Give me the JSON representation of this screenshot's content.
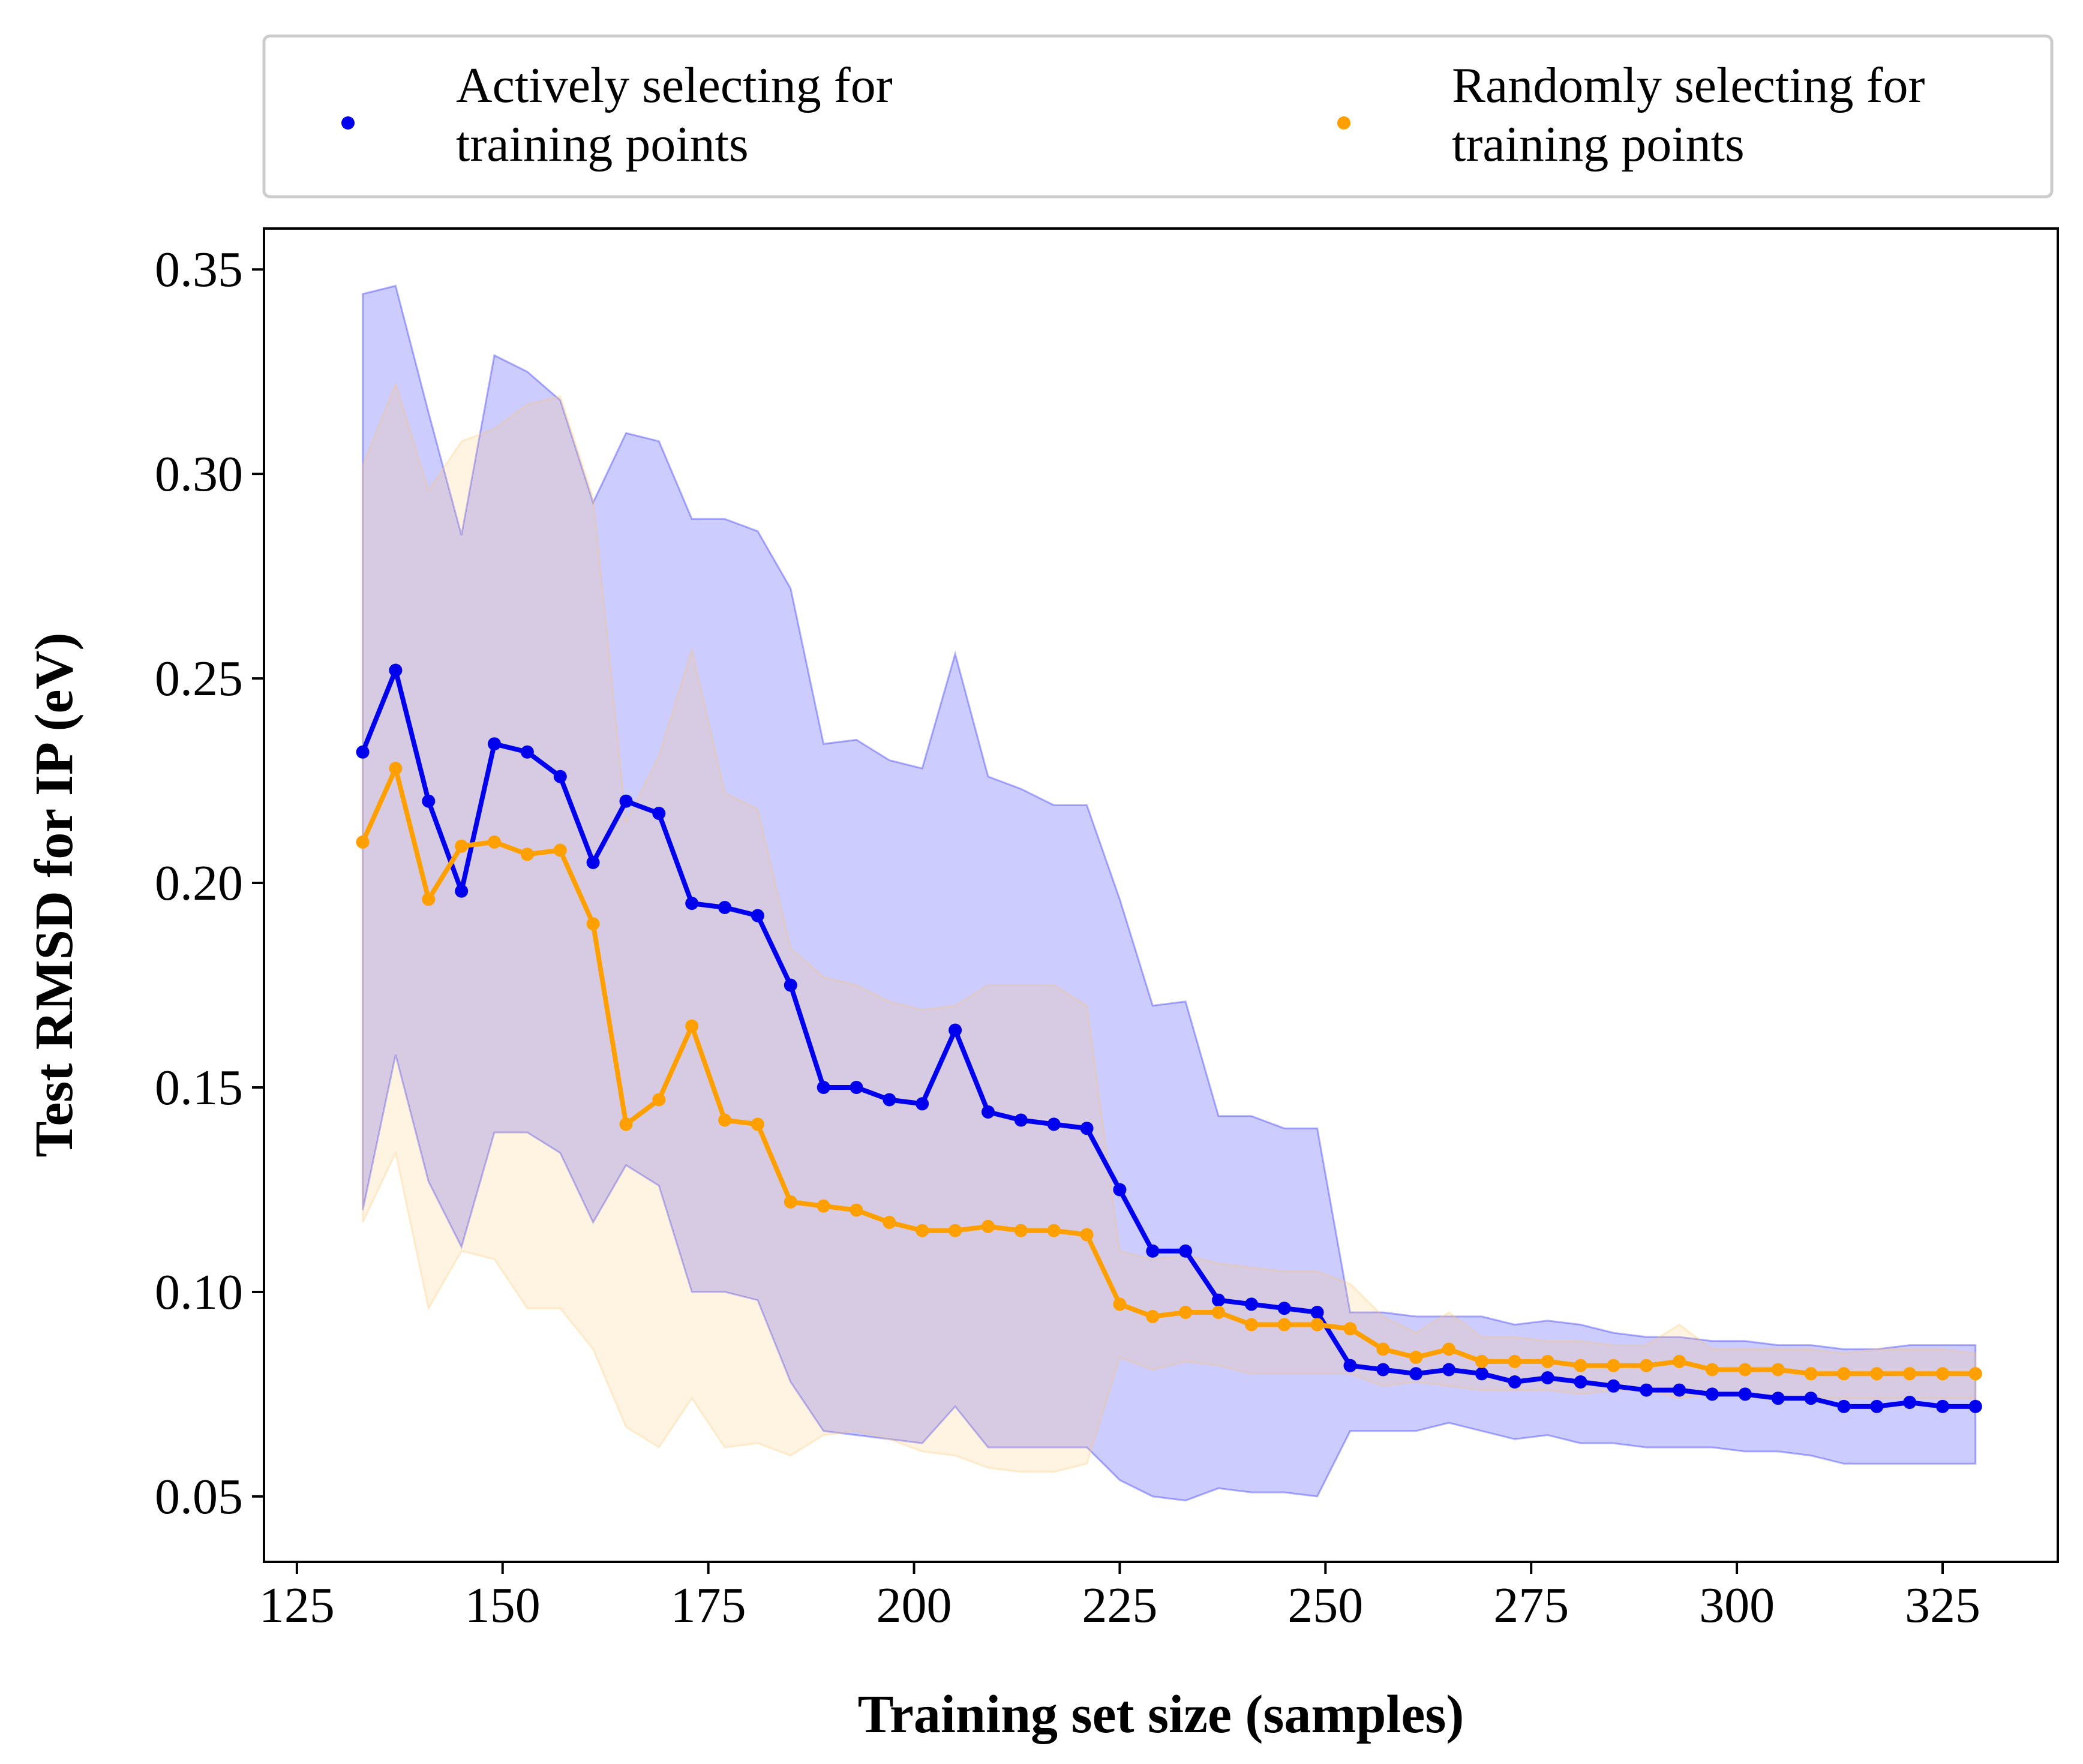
{
  "chart_data": {
    "type": "line",
    "xlabel": "Training set size (samples)",
    "ylabel": "Test RMSD for IP (eV)",
    "xlim": [
      121,
      339
    ],
    "ylim": [
      0.034,
      0.36
    ],
    "xticks": [
      125,
      150,
      175,
      200,
      225,
      250,
      275,
      300,
      325
    ],
    "xtick_labels": [
      "125",
      "150",
      "175",
      "200",
      "225",
      "250",
      "275",
      "300",
      "325"
    ],
    "yticks": [
      0.05,
      0.1,
      0.15,
      0.2,
      0.25,
      0.3,
      0.35
    ],
    "ytick_labels": [
      "0.05",
      "0.10",
      "0.15",
      "0.20",
      "0.25",
      "0.30",
      "0.35"
    ],
    "grid": false,
    "legend_position": "top",
    "x": [
      133,
      137,
      141,
      145,
      149,
      153,
      157,
      161,
      165,
      169,
      173,
      177,
      181,
      185,
      189,
      193,
      197,
      201,
      205,
      209,
      213,
      217,
      221,
      225,
      229,
      233,
      237,
      241,
      245,
      249,
      253,
      257,
      261,
      265,
      269,
      273,
      277,
      281,
      285,
      289,
      293,
      297,
      301,
      305,
      309,
      313,
      317,
      321,
      325,
      329
    ],
    "series": [
      {
        "name": "Actively selecting for\ntraining points",
        "legend_lines": [
          "Actively selecting for",
          "training points"
        ],
        "color": "#0000ee",
        "band_color": "#0000ff",
        "values": [
          0.232,
          0.252,
          0.22,
          0.198,
          0.234,
          0.232,
          0.226,
          0.205,
          0.22,
          0.217,
          0.195,
          0.194,
          0.192,
          0.175,
          0.15,
          0.15,
          0.147,
          0.146,
          0.164,
          0.144,
          0.142,
          0.141,
          0.14,
          0.125,
          0.11,
          0.11,
          0.098,
          0.097,
          0.096,
          0.095,
          0.082,
          0.081,
          0.08,
          0.081,
          0.08,
          0.078,
          0.079,
          0.078,
          0.077,
          0.076,
          0.076,
          0.075,
          0.075,
          0.074,
          0.074,
          0.072,
          0.072,
          0.073,
          0.072,
          0.072
        ],
        "upper": [
          0.344,
          0.346,
          0.315,
          0.285,
          0.329,
          0.325,
          0.318,
          0.293,
          0.31,
          0.308,
          0.289,
          0.289,
          0.286,
          0.272,
          0.234,
          0.235,
          0.23,
          0.228,
          0.256,
          0.226,
          0.223,
          0.219,
          0.219,
          0.196,
          0.17,
          0.171,
          0.143,
          0.143,
          0.14,
          0.14,
          0.095,
          0.095,
          0.094,
          0.094,
          0.094,
          0.092,
          0.093,
          0.092,
          0.09,
          0.089,
          0.089,
          0.088,
          0.088,
          0.087,
          0.087,
          0.086,
          0.086,
          0.087,
          0.087,
          0.087
        ],
        "lower": [
          0.12,
          0.158,
          0.127,
          0.111,
          0.139,
          0.139,
          0.134,
          0.117,
          0.131,
          0.126,
          0.1,
          0.1,
          0.098,
          0.078,
          0.066,
          0.065,
          0.064,
          0.063,
          0.072,
          0.062,
          0.062,
          0.062,
          0.062,
          0.054,
          0.05,
          0.049,
          0.052,
          0.051,
          0.051,
          0.05,
          0.066,
          0.066,
          0.066,
          0.068,
          0.066,
          0.064,
          0.065,
          0.063,
          0.063,
          0.062,
          0.062,
          0.062,
          0.061,
          0.061,
          0.06,
          0.058,
          0.058,
          0.058,
          0.058,
          0.058
        ]
      },
      {
        "name": "Randomly selecting for\ntraining points",
        "legend_lines": [
          "Randomly selecting for",
          "training points"
        ],
        "color": "#ffa000",
        "band_color": "#ffc870",
        "values": [
          0.21,
          0.228,
          0.196,
          0.209,
          0.21,
          0.207,
          0.208,
          0.19,
          0.141,
          0.147,
          0.165,
          0.142,
          0.141,
          0.122,
          0.121,
          0.12,
          0.117,
          0.115,
          0.115,
          0.116,
          0.115,
          0.115,
          0.114,
          0.097,
          0.094,
          0.095,
          0.095,
          0.092,
          0.092,
          0.092,
          0.091,
          0.086,
          0.084,
          0.086,
          0.083,
          0.083,
          0.083,
          0.082,
          0.082,
          0.082,
          0.083,
          0.081,
          0.081,
          0.081,
          0.08,
          0.08,
          0.08,
          0.08,
          0.08,
          0.08
        ],
        "upper": [
          0.302,
          0.322,
          0.296,
          0.308,
          0.311,
          0.317,
          0.319,
          0.294,
          0.215,
          0.231,
          0.257,
          0.222,
          0.218,
          0.184,
          0.177,
          0.175,
          0.171,
          0.169,
          0.17,
          0.175,
          0.175,
          0.175,
          0.17,
          0.11,
          0.108,
          0.109,
          0.107,
          0.106,
          0.105,
          0.105,
          0.102,
          0.094,
          0.09,
          0.095,
          0.089,
          0.089,
          0.088,
          0.088,
          0.087,
          0.087,
          0.092,
          0.086,
          0.086,
          0.086,
          0.086,
          0.085,
          0.086,
          0.086,
          0.086,
          0.085
        ],
        "lower": [
          0.117,
          0.134,
          0.096,
          0.11,
          0.108,
          0.096,
          0.096,
          0.086,
          0.067,
          0.062,
          0.074,
          0.062,
          0.063,
          0.06,
          0.065,
          0.066,
          0.064,
          0.061,
          0.06,
          0.057,
          0.056,
          0.056,
          0.058,
          0.084,
          0.081,
          0.083,
          0.082,
          0.08,
          0.08,
          0.08,
          0.08,
          0.077,
          0.078,
          0.077,
          0.076,
          0.076,
          0.076,
          0.075,
          0.076,
          0.076,
          0.074,
          0.075,
          0.075,
          0.074,
          0.074,
          0.074,
          0.074,
          0.074,
          0.074,
          0.074
        ]
      }
    ]
  }
}
